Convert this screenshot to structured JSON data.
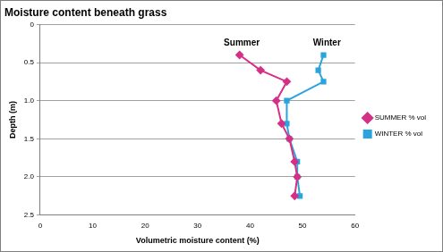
{
  "chart_data": {
    "type": "line",
    "title": "Moisture content beneath grass",
    "x_label": "Volumetric moisture content (%)",
    "y_label": "Depth (m)",
    "xlim": [
      0,
      60
    ],
    "xticks": [
      0,
      10,
      20,
      30,
      40,
      50,
      60
    ],
    "ylim": [
      0,
      2.5
    ],
    "yticks": [
      0,
      {
        "value": 0.5,
        "label": "0.5"
      },
      {
        "value": 1,
        "label": "1.0"
      },
      {
        "value": 1.5,
        "label": "1.5"
      },
      {
        "value": 2,
        "label": "2.0"
      },
      {
        "value": 2.5,
        "label": "2.5"
      }
    ],
    "y_reversed": true,
    "grid": "y",
    "legend": "right",
    "series": [
      {
        "name": "SUMMER % vol",
        "color": "#d62f86",
        "marker": "diamond",
        "x": [
          38,
          42,
          47,
          45,
          46,
          47.5,
          48.5,
          49,
          48.5
        ],
        "values": [
          0.4,
          0.6,
          0.75,
          1.0,
          1.3,
          1.5,
          1.8,
          2.0,
          2.25
        ]
      },
      {
        "name": "WINTER % vol",
        "color": "#2aa4dc",
        "marker": "square",
        "x": [
          54,
          53,
          54,
          47,
          47,
          47.5,
          49,
          49,
          49.5
        ],
        "values": [
          0.4,
          0.6,
          0.75,
          1.0,
          1.3,
          1.5,
          1.8,
          2.0,
          2.25
        ]
      }
    ],
    "annotations": [
      {
        "text": "Summer",
        "x": 35,
        "y": 0.3
      },
      {
        "text": "Winter",
        "x": 52,
        "y": 0.3
      }
    ]
  }
}
